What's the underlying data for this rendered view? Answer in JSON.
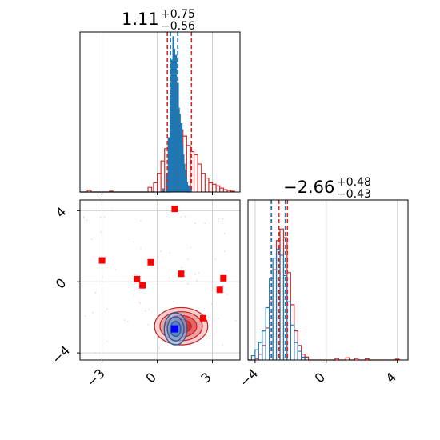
{
  "chart_data": [
    {
      "type": "histogram",
      "panel": "marginal-x",
      "title": {
        "value": "1.11",
        "plus": "+0.75",
        "minus": "−0.56"
      },
      "xlim": [
        -4.2,
        4.5
      ],
      "xticks": [
        -3,
        0,
        3
      ],
      "grid": true,
      "series": [
        {
          "color": "#d62728",
          "bins": [
            [
              -3.8,
              0.01
            ],
            [
              -2.6,
              0.005
            ],
            [
              -0.5,
              0.03
            ],
            [
              -0.2,
              0.06
            ],
            [
              0.0,
              0.12
            ],
            [
              0.2,
              0.2
            ],
            [
              0.4,
              0.28
            ],
            [
              0.6,
              0.34
            ],
            [
              0.8,
              0.42
            ],
            [
              1.0,
              0.46
            ],
            [
              1.2,
              0.4
            ],
            [
              1.4,
              0.36
            ],
            [
              1.6,
              0.3
            ],
            [
              1.8,
              0.26
            ],
            [
              2.0,
              0.24
            ],
            [
              2.2,
              0.18
            ],
            [
              2.4,
              0.12
            ],
            [
              2.6,
              0.09
            ],
            [
              2.8,
              0.06
            ],
            [
              3.0,
              0.05
            ],
            [
              3.2,
              0.04
            ],
            [
              3.4,
              0.025
            ],
            [
              3.6,
              0.015
            ],
            [
              3.8,
              0.01
            ],
            [
              4.0,
              0.005
            ]
          ]
        },
        {
          "color": "#1f77b4",
          "bins": [
            [
              0.3,
              0.02
            ],
            [
              0.5,
              0.12
            ],
            [
              0.6,
              0.35
            ],
            [
              0.7,
              0.62
            ],
            [
              0.75,
              0.85
            ],
            [
              0.8,
              0.78
            ],
            [
              0.85,
              1.0
            ],
            [
              0.9,
              0.92
            ],
            [
              0.95,
              0.75
            ],
            [
              1.0,
              0.88
            ],
            [
              1.05,
              0.64
            ],
            [
              1.1,
              0.7
            ],
            [
              1.15,
              0.54
            ],
            [
              1.2,
              0.5
            ],
            [
              1.25,
              0.4
            ],
            [
              1.3,
              0.44
            ],
            [
              1.35,
              0.3
            ],
            [
              1.4,
              0.24
            ],
            [
              1.45,
              0.18
            ],
            [
              1.5,
              0.14
            ],
            [
              1.55,
              0.1
            ],
            [
              1.6,
              0.06
            ],
            [
              1.7,
              0.04
            ],
            [
              1.8,
              0.02
            ]
          ]
        }
      ],
      "vlines": [
        {
          "x": 0.55,
          "color": "#d62728"
        },
        {
          "x": 1.11,
          "color": "#d62728"
        },
        {
          "x": 1.86,
          "color": "#d62728"
        },
        {
          "x": 0.72,
          "color": "#1f77b4"
        },
        {
          "x": 1.12,
          "color": "#1f77b4"
        }
      ]
    },
    {
      "type": "contour-scatter",
      "panel": "joint",
      "xlim": [
        -4.2,
        4.5
      ],
      "ylim": [
        -4.4,
        4.6
      ],
      "xticks": [
        -3,
        0,
        3
      ],
      "yticks": [
        4,
        0,
        -4
      ],
      "grid": true,
      "red_markers": [
        [
          0.95,
          4.1
        ],
        [
          -3.0,
          1.2
        ],
        [
          -0.35,
          1.1
        ],
        [
          -1.1,
          0.15
        ],
        [
          -0.8,
          -0.2
        ],
        [
          1.3,
          0.45
        ],
        [
          3.6,
          0.2
        ],
        [
          3.4,
          -0.45
        ],
        [
          2.5,
          -2.05
        ]
      ],
      "blue_marker": [
        0.95,
        -2.65
      ],
      "contours_red": {
        "center": [
          1.3,
          -2.5
        ],
        "radii": [
          [
            1.45,
            1.05
          ],
          [
            1.15,
            0.82
          ],
          [
            0.85,
            0.6
          ],
          [
            0.55,
            0.38
          ]
        ]
      },
      "contours_blue": {
        "center": [
          1.0,
          -2.65
        ],
        "radii": [
          [
            0.62,
            0.9
          ],
          [
            0.45,
            0.68
          ],
          [
            0.28,
            0.42
          ]
        ]
      }
    },
    {
      "type": "histogram",
      "panel": "marginal-y",
      "title": {
        "value": "−2.66",
        "plus": "+0.48",
        "minus": "−0.43"
      },
      "xlim": [
        -4.4,
        4.6
      ],
      "xticks": [
        -4,
        0,
        4
      ],
      "grid": true,
      "series": [
        {
          "color": "#d62728",
          "bins": [
            [
              -4.0,
              0.01
            ],
            [
              -3.8,
              0.04
            ],
            [
              -3.6,
              0.1
            ],
            [
              -3.4,
              0.22
            ],
            [
              -3.2,
              0.4
            ],
            [
              -3.0,
              0.62
            ],
            [
              -2.8,
              0.82
            ],
            [
              -2.6,
              0.9
            ],
            [
              -2.4,
              0.84
            ],
            [
              -2.2,
              0.6
            ],
            [
              -2.0,
              0.38
            ],
            [
              -1.8,
              0.2
            ],
            [
              -1.6,
              0.1
            ],
            [
              -1.4,
              0.04
            ],
            [
              -1.2,
              0.02
            ],
            [
              0.5,
              0.01
            ],
            [
              1.1,
              0.015
            ],
            [
              1.6,
              0.01
            ],
            [
              2.2,
              0.008
            ],
            [
              3.9,
              0.006
            ]
          ]
        },
        {
          "color": "#1f77b4",
          "bins": [
            [
              -4.2,
              0.03
            ],
            [
              -4.0,
              0.07
            ],
            [
              -3.8,
              0.12
            ],
            [
              -3.6,
              0.2
            ],
            [
              -3.4,
              0.36
            ],
            [
              -3.2,
              0.56
            ],
            [
              -3.0,
              0.7
            ],
            [
              -2.8,
              0.76
            ],
            [
              -2.6,
              0.72
            ],
            [
              -2.4,
              0.58
            ],
            [
              -2.2,
              0.4
            ],
            [
              -2.0,
              0.24
            ],
            [
              -1.8,
              0.12
            ],
            [
              -1.6,
              0.06
            ],
            [
              -1.4,
              0.02
            ]
          ]
        }
      ],
      "vlines": [
        {
          "x": -3.09,
          "color": "#d62728"
        },
        {
          "x": -2.66,
          "color": "#d62728"
        },
        {
          "x": -2.18,
          "color": "#d62728"
        },
        {
          "x": -3.08,
          "color": "#1f77b4"
        },
        {
          "x": -2.3,
          "color": "#1f77b4"
        }
      ]
    }
  ]
}
